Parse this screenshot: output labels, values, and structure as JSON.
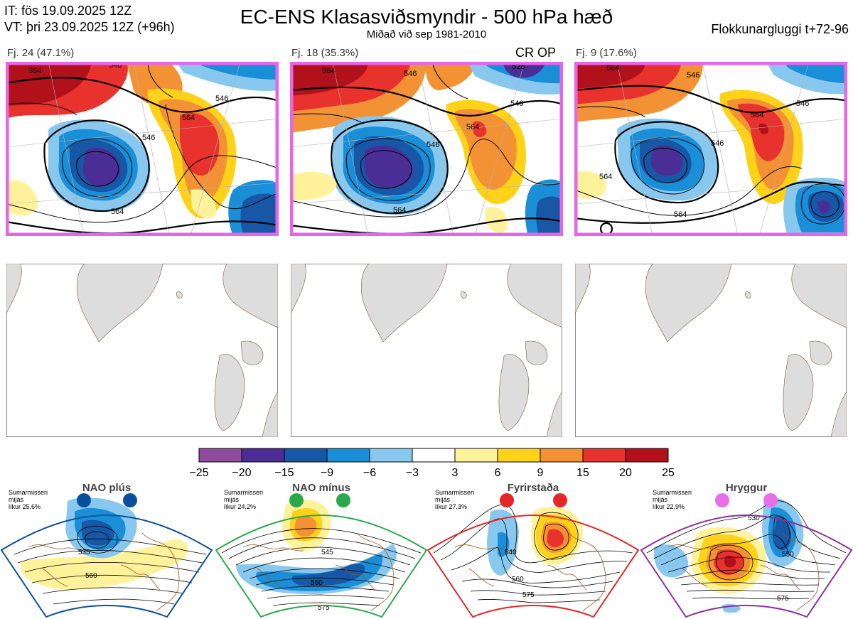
{
  "header": {
    "it_line": "IT: fös 19.09.2025 12Z",
    "vt_line": "VT: þri 23.09.2025 12Z  (+96h)",
    "title": "EC-ENS Klasasviðsmyndir - 500 hPa hæð",
    "subtitle": "Miðað við sep 1981-2010",
    "window_label": "Flokkunargluggi t+72-96"
  },
  "clusters": [
    {
      "label": "Fj. 24 (47.1%)",
      "contours": [
        "546",
        "564",
        "546",
        "564",
        "546",
        "564"
      ],
      "flag": ""
    },
    {
      "label": "Fj. 18 (35.3%)",
      "contours": [
        "546",
        "528",
        "546",
        "564",
        "546",
        "564",
        "564"
      ],
      "flag": "CR OP"
    },
    {
      "label": "Fj. 9 (17.6%)",
      "contours": [
        "564",
        "546",
        "546",
        "564",
        "546",
        "564",
        "564"
      ],
      "flag": ""
    }
  ],
  "colorbar": {
    "ticks": [
      "−25",
      "−20",
      "−15",
      "−9",
      "−6",
      "−3",
      "3",
      "6",
      "9",
      "15",
      "20",
      "25"
    ],
    "colors": [
      "#8e4c9f",
      "#4a2e96",
      "#1757a6",
      "#1a8fd8",
      "#89c8ee",
      "#ffffff",
      "#fff29a",
      "#ffd21a",
      "#f39234",
      "#e8322d",
      "#b0111a"
    ]
  },
  "regimes": [
    {
      "name": "NAO plús",
      "season": "Sumarmisseri",
      "mean": "mijás",
      "prob": "líkur 25,6%",
      "color": "#0b4f9c",
      "labels": [
        "535",
        "560"
      ]
    },
    {
      "name": "NAO mínus",
      "season": "Sumarmisseri",
      "mean": "mijás",
      "prob": "líkur 24,2%",
      "color": "#2aa84a",
      "labels": [
        "545",
        "560",
        "575"
      ]
    },
    {
      "name": "Fyrirstaða",
      "season": "Sumarmisseri",
      "mean": "mijás",
      "prob": "líkur 27,3%",
      "color": "#e52626",
      "labels": [
        "540",
        "560",
        "575"
      ]
    },
    {
      "name": "Hryggur",
      "season": "Sumarmisseri",
      "mean": "mijás",
      "prob": "líkur 22,9%",
      "color": "#e86fe8",
      "labels": [
        "530",
        "550",
        "575"
      ]
    }
  ]
}
